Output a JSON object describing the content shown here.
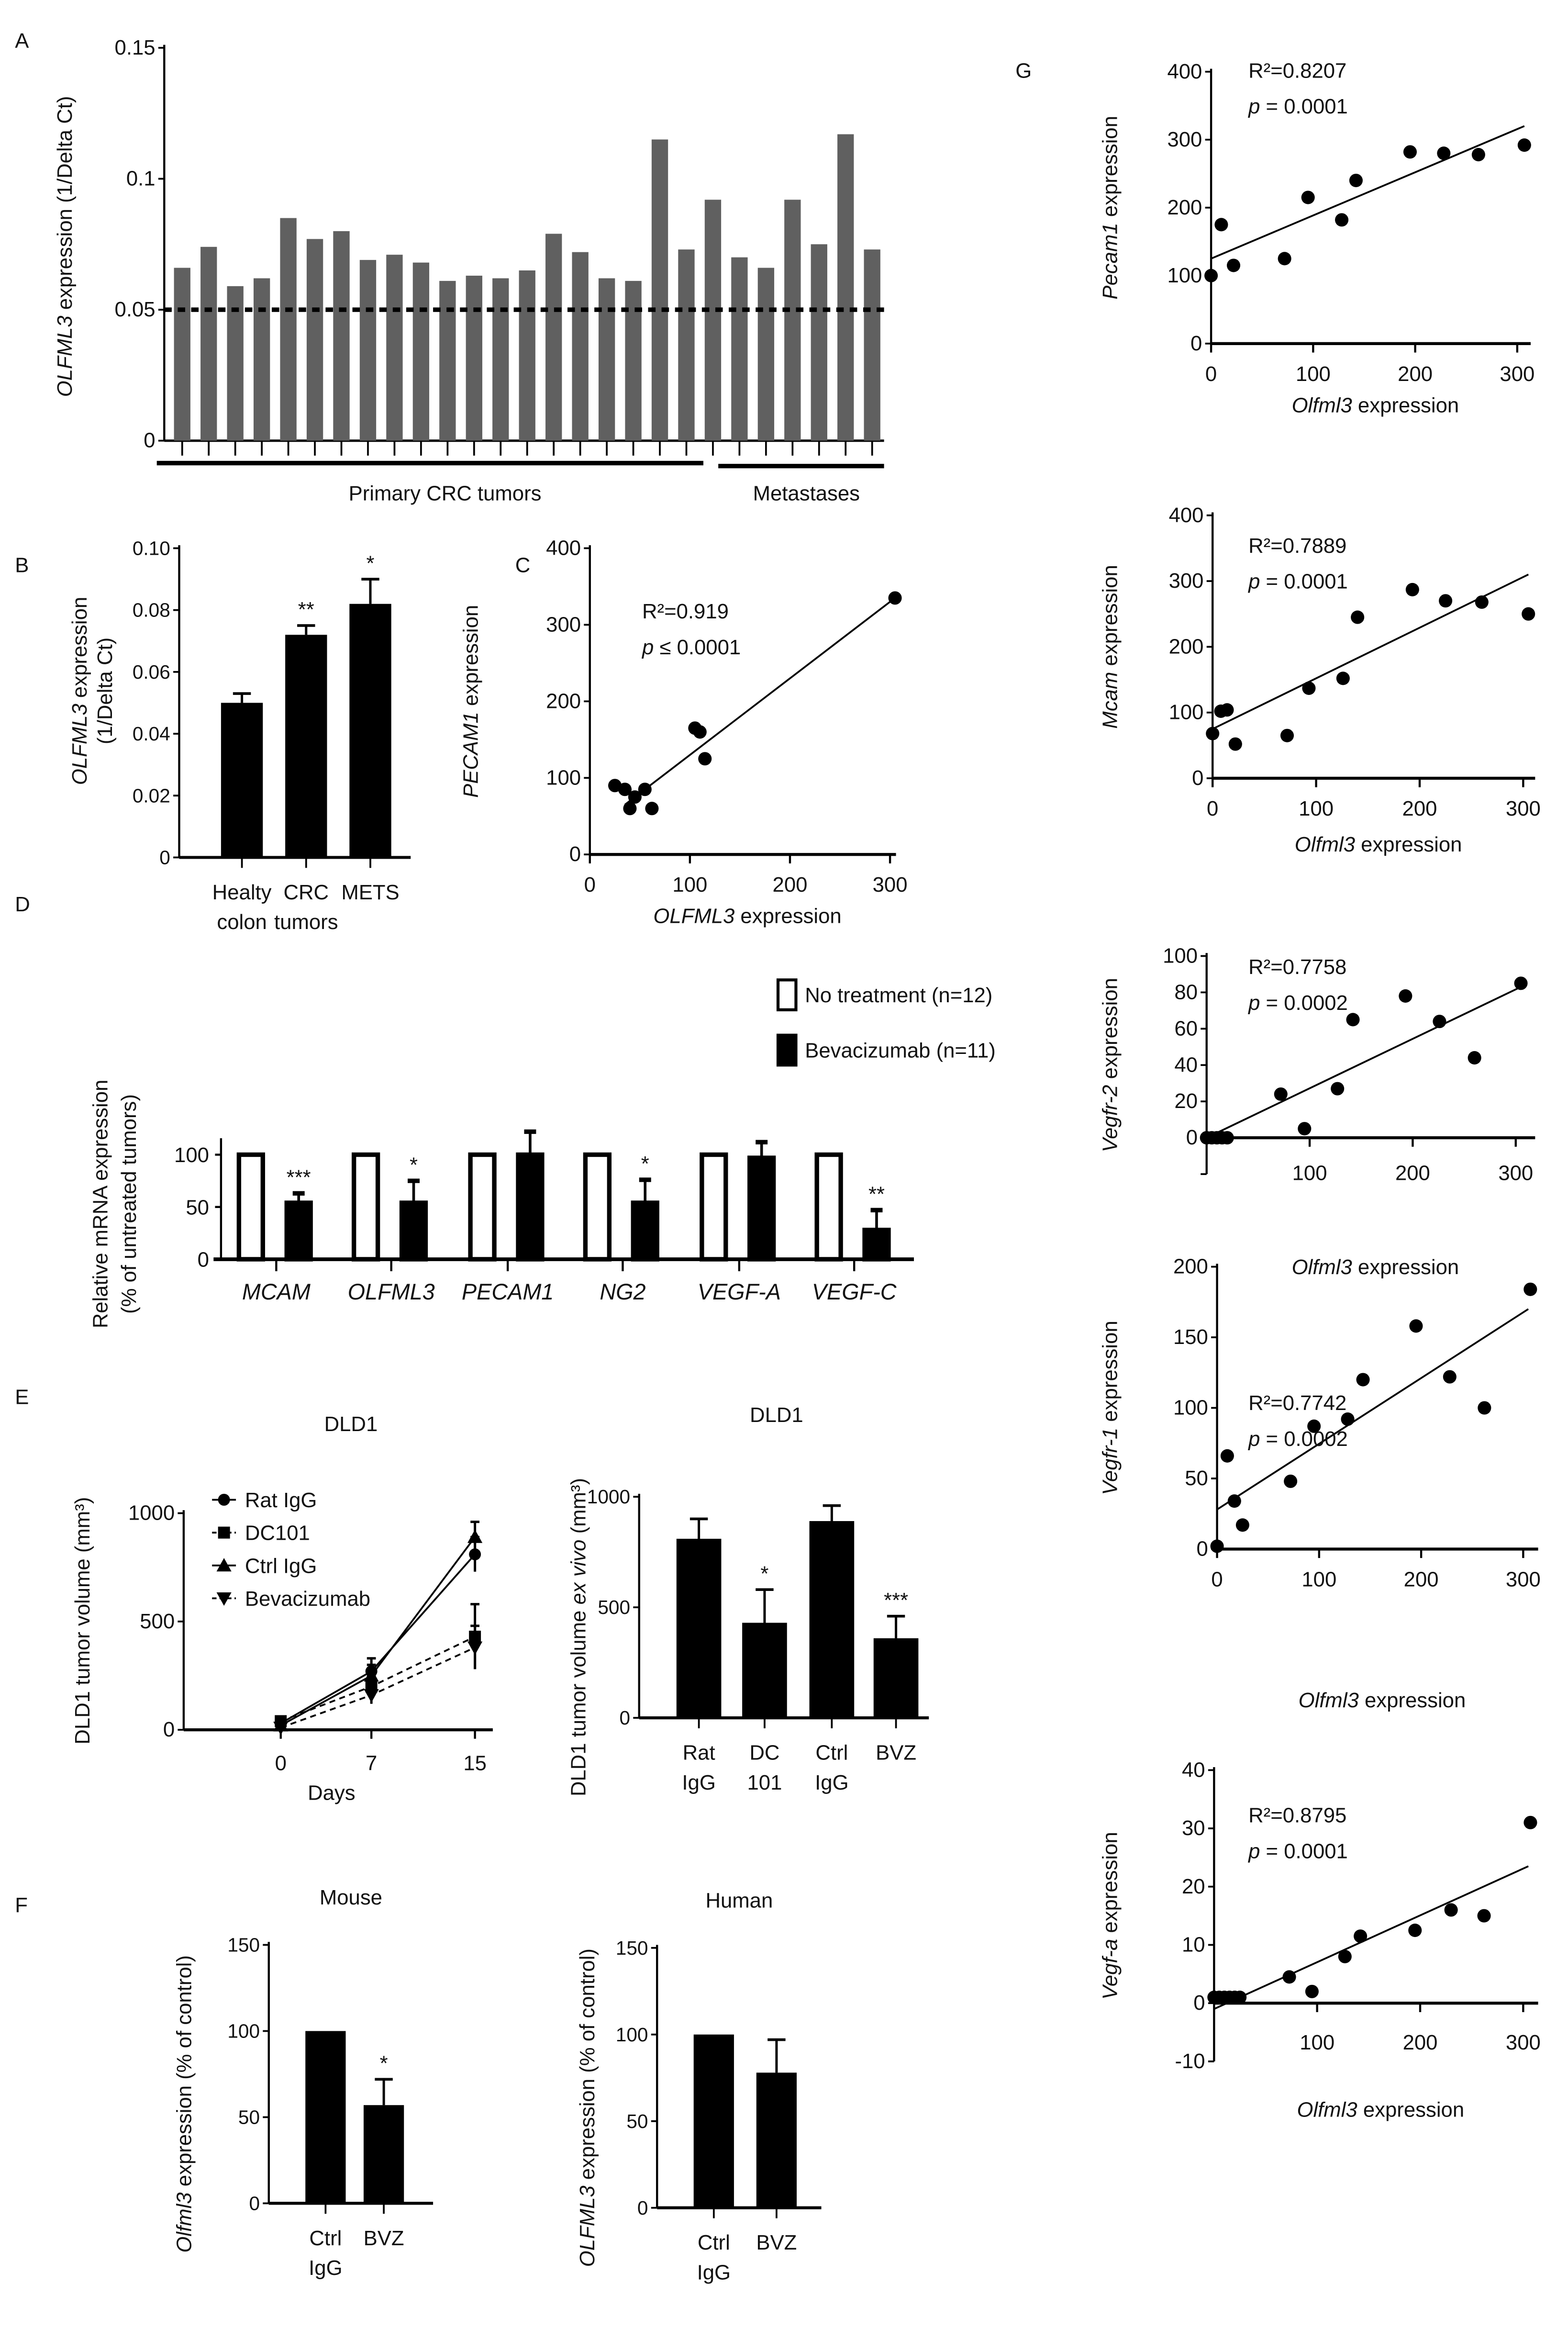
{
  "panel_labels": [
    "A",
    "B",
    "C",
    "D",
    "E",
    "F",
    "G"
  ],
  "chart_data": [
    {
      "id": "A",
      "type": "bar",
      "ylabel": [
        {
          "t": "OLFML3",
          "i": true
        },
        {
          "t": " expression (1/Delta Ct)"
        }
      ],
      "ylim": [
        0,
        0.15
      ],
      "yticks": [
        0,
        0.05,
        0.1,
        0.15
      ],
      "ytick_labels": [
        "0",
        "0.05",
        "0.1",
        "0.15"
      ],
      "values": [
        0.066,
        0.074,
        0.059,
        0.062,
        0.085,
        0.077,
        0.08,
        0.069,
        0.071,
        0.068,
        0.061,
        0.063,
        0.062,
        0.065,
        0.079,
        0.072,
        0.062,
        0.061,
        0.115,
        0.073,
        0.092,
        0.07,
        0.066,
        0.092,
        0.075,
        0.117,
        0.073
      ],
      "reference_line": 0.05,
      "groups": [
        {
          "label": "Primary CRC tumors",
          "count": 21
        },
        {
          "label": "Metastases",
          "count": 6
        }
      ],
      "color": "#606060"
    },
    {
      "id": "B",
      "type": "bar",
      "ylabel": [
        {
          "t": "OLFML3",
          "i": true
        },
        {
          "t": " expression"
        }
      ],
      "ylabel2": "(1/Delta Ct)",
      "ylim": [
        0,
        0.1
      ],
      "yticks": [
        0,
        0.02,
        0.04,
        0.06,
        0.08,
        0.1
      ],
      "ytick_labels": [
        "0",
        "0.02",
        "0.04",
        "0.06",
        "0.08",
        "0.10"
      ],
      "categories": [
        [
          "Healty",
          "colon"
        ],
        [
          "CRC",
          "tumors"
        ],
        [
          "METS",
          ""
        ]
      ],
      "values": [
        0.05,
        0.072,
        0.082
      ],
      "errors": [
        0.003,
        0.003,
        0.008
      ],
      "annotations": [
        "",
        "**",
        "*"
      ],
      "color": "#000000"
    },
    {
      "id": "C",
      "type": "scatter",
      "ylabel": [
        {
          "t": "PECAM1",
          "i": true
        },
        {
          "t": " expression"
        }
      ],
      "xlabel": [
        {
          "t": "OLFML3",
          "i": true
        },
        {
          "t": " expression"
        }
      ],
      "xlim": [
        0,
        300
      ],
      "ylim": [
        0,
        400
      ],
      "xticks": [
        0,
        100,
        200,
        300
      ],
      "xtick_labels": [
        "0",
        "100",
        "200",
        "300"
      ],
      "yticks": [
        0,
        100,
        200,
        300,
        400
      ],
      "ytick_labels": [
        "0",
        "100",
        "200",
        "300",
        "400"
      ],
      "points": [
        [
          25,
          90
        ],
        [
          35,
          85
        ],
        [
          40,
          60
        ],
        [
          45,
          75
        ],
        [
          55,
          85
        ],
        [
          62,
          60
        ],
        [
          105,
          165
        ],
        [
          110,
          160
        ],
        [
          115,
          125
        ],
        [
          305,
          335
        ]
      ],
      "fit_line": [
        [
          35,
          65
        ],
        [
          305,
          335
        ]
      ],
      "r2_text": "R²=0.919",
      "p_prefix": "p",
      "p_text": " ≤ 0.0001"
    },
    {
      "id": "D",
      "type": "bar",
      "ylabel": [
        {
          "t": "Relative mRNA expression"
        }
      ],
      "ylabel2": "(% of untreated tumors)",
      "ylim": [
        0,
        100
      ],
      "yticks": [
        0,
        50,
        100
      ],
      "ytick_labels": [
        "0",
        "50",
        "100"
      ],
      "categories": [
        "MCAM",
        "OLFML3",
        "PECAM1",
        "NG2",
        "VEGF-A",
        "VEGF-C"
      ],
      "series": [
        {
          "name": "No treatment (n=12)",
          "values": [
            100,
            100,
            100,
            100,
            100,
            100
          ],
          "errors": [
            0,
            0,
            0,
            0,
            0,
            0
          ],
          "color": "#ffffff"
        },
        {
          "name": "Bevacizumab (n=11)",
          "values": [
            54,
            54,
            100,
            54,
            97,
            28
          ],
          "errors": [
            9,
            21,
            22,
            22,
            15,
            19
          ],
          "color": "#000000"
        }
      ],
      "annotations": [
        "***",
        "*",
        "",
        "*",
        "",
        "**"
      ]
    },
    {
      "id": "E1",
      "type": "line",
      "title": "DLD1",
      "ylabel": [
        {
          "t": "DLD1 tumor volume (mm³)"
        }
      ],
      "xlabel": [
        {
          "t": "Days"
        }
      ],
      "x": [
        0,
        7,
        15
      ],
      "xtick_labels": [
        "0",
        "7",
        "15"
      ],
      "ylim": [
        0,
        1000
      ],
      "yticks": [
        0,
        500,
        1000
      ],
      "ytick_labels": [
        "0",
        "500",
        "1000"
      ],
      "series": [
        {
          "name": "Rat IgG",
          "values": [
            30,
            270,
            810
          ],
          "errors": [
            20,
            60,
            80
          ],
          "marker": "circle",
          "dash": false
        },
        {
          "name": "DC101",
          "values": [
            40,
            200,
            430
          ],
          "errors": [
            20,
            50,
            150
          ],
          "marker": "square",
          "dash": true
        },
        {
          "name": "Ctrl IgG",
          "values": [
            20,
            250,
            890
          ],
          "errors": [
            20,
            50,
            70
          ],
          "marker": "triangle",
          "dash": false
        },
        {
          "name": "Bevacizumab",
          "values": [
            10,
            160,
            380
          ],
          "errors": [
            15,
            40,
            100
          ],
          "marker": "triangle-down",
          "dash": true
        }
      ]
    },
    {
      "id": "E2",
      "type": "bar",
      "title": "DLD1",
      "ylabel": [
        {
          "t": "DLD1 tumor volume "
        },
        {
          "t": "ex vivo",
          "i": true
        },
        {
          "t": " (mm³)"
        }
      ],
      "ylim": [
        0,
        1000
      ],
      "yticks": [
        0,
        500,
        1000
      ],
      "ytick_labels": [
        "0",
        "500",
        "1000"
      ],
      "categories": [
        [
          "Rat",
          "IgG"
        ],
        [
          "DC",
          "101"
        ],
        [
          "Ctrl",
          "IgG"
        ],
        [
          "BVZ",
          ""
        ]
      ],
      "values": [
        810,
        430,
        890,
        360
      ],
      "errors": [
        90,
        150,
        70,
        100
      ],
      "annotations": [
        "",
        "*",
        "",
        "***"
      ],
      "color": "#000000"
    },
    {
      "id": "F1",
      "type": "bar",
      "title": "Mouse",
      "ylabel": [
        {
          "t": "Olfml3",
          "i": true
        },
        {
          "t": " expression (% of control)"
        }
      ],
      "ylim": [
        0,
        150
      ],
      "yticks": [
        0,
        50,
        100,
        150
      ],
      "ytick_labels": [
        "0",
        "50",
        "100",
        "150"
      ],
      "categories": [
        [
          "Ctrl",
          "IgG"
        ],
        [
          "BVZ",
          ""
        ]
      ],
      "values": [
        100,
        57
      ],
      "errors": [
        0,
        15
      ],
      "annotations": [
        "",
        "*"
      ],
      "color": "#000000"
    },
    {
      "id": "F2",
      "type": "bar",
      "title": "Human",
      "ylabel": [
        {
          "t": "OLFML3",
          "i": true
        },
        {
          "t": " expression (% of control)"
        }
      ],
      "ylim": [
        0,
        150
      ],
      "yticks": [
        0,
        50,
        100,
        150
      ],
      "ytick_labels": [
        "0",
        "50",
        "100",
        "150"
      ],
      "categories": [
        [
          "Ctrl",
          "IgG"
        ],
        [
          "BVZ",
          ""
        ]
      ],
      "values": [
        100,
        78
      ],
      "errors": [
        0,
        19
      ],
      "annotations": [
        "",
        ""
      ],
      "color": "#000000"
    },
    {
      "id": "G1",
      "type": "scatter",
      "ylabel": [
        {
          "t": "Pecam1",
          "i": true
        },
        {
          "t": " expression"
        }
      ],
      "xlabel": [
        {
          "t": "Olfml3",
          "i": true
        },
        {
          "t": " expression"
        }
      ],
      "xlim": [
        0,
        300
      ],
      "ylim": [
        0,
        400
      ],
      "xticks": [
        0,
        100,
        200,
        300
      ],
      "xtick_labels": [
        "0",
        "100",
        "200",
        "300"
      ],
      "yticks": [
        0,
        100,
        200,
        300,
        400
      ],
      "ytick_labels": [
        "0",
        "100",
        "200",
        "300",
        "400"
      ],
      "points": [
        [
          0,
          100
        ],
        [
          10,
          175
        ],
        [
          22,
          115
        ],
        [
          72,
          125
        ],
        [
          95,
          215
        ],
        [
          128,
          182
        ],
        [
          142,
          240
        ],
        [
          195,
          282
        ],
        [
          228,
          280
        ],
        [
          262,
          278
        ],
        [
          307,
          292
        ]
      ],
      "fit_line": [
        [
          0,
          125
        ],
        [
          307,
          320
        ]
      ],
      "r2_text": "R²=0.8207",
      "p_prefix": "p",
      "p_text": " = 0.0001"
    },
    {
      "id": "G2",
      "type": "scatter",
      "ylabel": [
        {
          "t": "Mcam",
          "i": true
        },
        {
          "t": " expression"
        }
      ],
      "xlabel": [
        {
          "t": "Olfml3",
          "i": true
        },
        {
          "t": " expression"
        }
      ],
      "xlim": [
        0,
        300
      ],
      "ylim": [
        0,
        400
      ],
      "xticks": [
        0,
        100,
        200,
        300
      ],
      "xtick_labels": [
        "0",
        "100",
        "200",
        "300"
      ],
      "yticks": [
        0,
        100,
        200,
        300,
        400
      ],
      "ytick_labels": [
        "0",
        "100",
        "200",
        "300",
        "400"
      ],
      "points": [
        [
          0,
          68
        ],
        [
          8,
          102
        ],
        [
          14,
          104
        ],
        [
          22,
          52
        ],
        [
          72,
          65
        ],
        [
          93,
          137
        ],
        [
          126,
          152
        ],
        [
          140,
          245
        ],
        [
          193,
          287
        ],
        [
          225,
          270
        ],
        [
          260,
          268
        ],
        [
          305,
          250
        ]
      ],
      "fit_line": [
        [
          0,
          75
        ],
        [
          305,
          310
        ]
      ],
      "r2_text": "R²=0.7889",
      "p_prefix": "p",
      "p_text": " = 0.0001"
    },
    {
      "id": "G3",
      "type": "scatter",
      "ylabel": [
        {
          "t": "Vegfr-2",
          "i": true
        },
        {
          "t": " expression"
        }
      ],
      "xlabel": [
        {
          "t": "Olfml3",
          "i": true
        },
        {
          "t": " expression"
        }
      ],
      "xlim": [
        0,
        300
      ],
      "ylim": [
        -20,
        100
      ],
      "xticks": [
        100,
        200,
        300
      ],
      "xtick_labels": [
        "100",
        "200",
        "300"
      ],
      "yticks": [
        -20,
        0,
        20,
        40,
        60,
        80,
        100
      ],
      "ytick_labels": [
        "",
        "0",
        "20",
        "40",
        "60",
        "80",
        "100"
      ],
      "points": [
        [
          0,
          0
        ],
        [
          5,
          0
        ],
        [
          10,
          0
        ],
        [
          15,
          0
        ],
        [
          20,
          0
        ],
        [
          72,
          24
        ],
        [
          95,
          5
        ],
        [
          127,
          27
        ],
        [
          142,
          65
        ],
        [
          193,
          78
        ],
        [
          226,
          64
        ],
        [
          260,
          44
        ],
        [
          305,
          85
        ]
      ],
      "fit_line": [
        [
          0,
          0
        ],
        [
          305,
          83
        ]
      ],
      "r2_text": "R²=0.7758",
      "p_prefix": "p",
      "p_text": " = 0.0002"
    },
    {
      "id": "G4",
      "type": "scatter",
      "ylabel": [
        {
          "t": "Vegfr-1",
          "i": true
        },
        {
          "t": " expression"
        }
      ],
      "xlabel": [
        {
          "t": "Olfml3",
          "i": true
        },
        {
          "t": " expression"
        }
      ],
      "xlim": [
        0,
        300
      ],
      "ylim": [
        0,
        200
      ],
      "xticks": [
        0,
        100,
        200,
        300
      ],
      "xtick_labels": [
        "0",
        "100",
        "200",
        "300"
      ],
      "yticks": [
        0,
        50,
        100,
        150,
        200
      ],
      "ytick_labels": [
        "0",
        "50",
        "100",
        "150",
        "200"
      ],
      "points": [
        [
          0,
          2
        ],
        [
          10,
          66
        ],
        [
          17,
          34
        ],
        [
          25,
          17
        ],
        [
          72,
          48
        ],
        [
          95,
          87
        ],
        [
          128,
          92
        ],
        [
          143,
          120
        ],
        [
          195,
          158
        ],
        [
          228,
          122
        ],
        [
          262,
          100
        ],
        [
          307,
          184
        ]
      ],
      "fit_line": [
        [
          0,
          28
        ],
        [
          305,
          170
        ]
      ],
      "r2_text": "R²=0.7742",
      "p_prefix": "p",
      "p_text": " = 0.0002"
    },
    {
      "id": "G5",
      "type": "scatter",
      "ylabel": [
        {
          "t": "Vegf-a",
          "i": true
        },
        {
          "t": " expression"
        }
      ],
      "xlabel": [
        {
          "t": "Olfml3",
          "i": true
        },
        {
          "t": " expression"
        }
      ],
      "xlim": [
        0,
        300
      ],
      "ylim": [
        -10,
        40
      ],
      "xticks": [
        100,
        200,
        300
      ],
      "xtick_labels": [
        "100",
        "200",
        "300"
      ],
      "yticks": [
        -10,
        0,
        10,
        20,
        30,
        40
      ],
      "ytick_labels": [
        "-10",
        "0",
        "10",
        "20",
        "30",
        "40"
      ],
      "points": [
        [
          0,
          1
        ],
        [
          5,
          1
        ],
        [
          10,
          1
        ],
        [
          15,
          1
        ],
        [
          20,
          1
        ],
        [
          25,
          1
        ],
        [
          73,
          4.5
        ],
        [
          95,
          2
        ],
        [
          127,
          8
        ],
        [
          142,
          11.5
        ],
        [
          195,
          12.5
        ],
        [
          230,
          16
        ],
        [
          262,
          15
        ],
        [
          307,
          31
        ]
      ],
      "fit_line": [
        [
          0,
          -1
        ],
        [
          305,
          23.5
        ]
      ],
      "r2_text": "R²=0.8795",
      "p_prefix": "p",
      "p_text": " = 0.0001"
    }
  ]
}
